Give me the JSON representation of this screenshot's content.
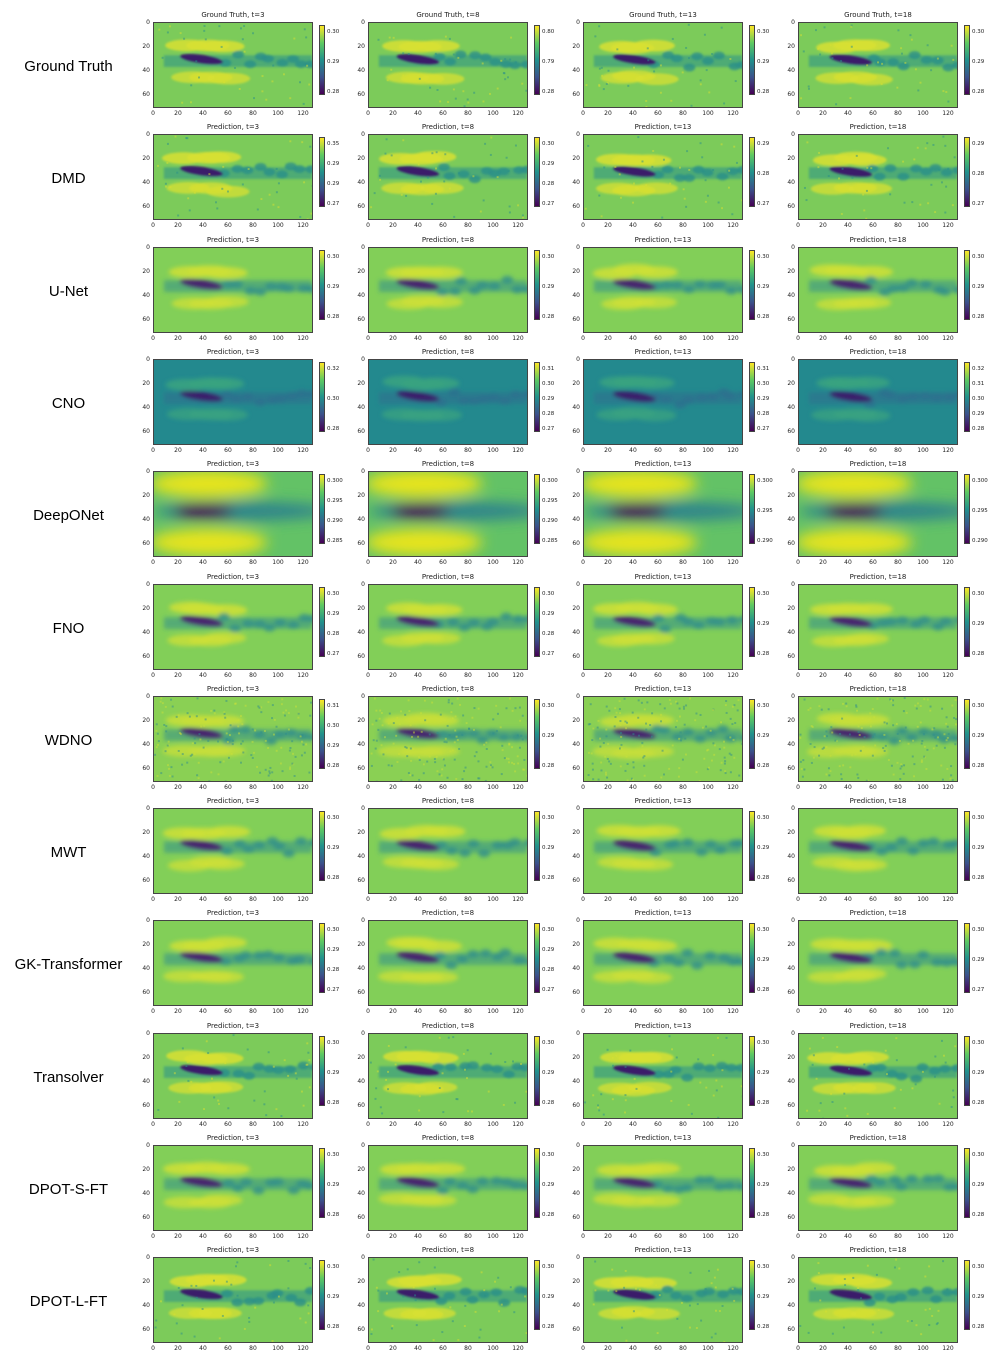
{
  "columns": [
    "t=3",
    "t=8",
    "t=13",
    "t=18"
  ],
  "y_ticks": [
    "0",
    "20",
    "40",
    "60"
  ],
  "x_ticks": [
    "0",
    "20",
    "40",
    "60",
    "80",
    "100",
    "120"
  ],
  "rows": [
    {
      "label": "Ground Truth",
      "style": "sharp",
      "titles": [
        "Ground Truth, t=3",
        "Ground Truth, t=8",
        "Ground Truth, t=13",
        "Ground Truth, t=18"
      ],
      "cbar": [
        [
          "0.30",
          "0.29",
          "0.28"
        ],
        [
          "0.80",
          "0.79",
          "0.28"
        ],
        [
          "0.30",
          "0.29",
          "0.28"
        ],
        [
          "0.30",
          "0.29",
          "0.28"
        ]
      ]
    },
    {
      "label": "DMD",
      "style": "sharp",
      "titles": [
        "Prediction, t=3",
        "Prediction, t=8",
        "Prediction, t=13",
        "Prediction, t=18"
      ],
      "cbar": [
        [
          "0.35",
          "0.29",
          "0.29",
          "0.27"
        ],
        [
          "0.30",
          "0.29",
          "0.28",
          "0.27"
        ],
        [
          "0.29",
          "0.28",
          "0.27"
        ],
        [
          "0.29",
          "0.28",
          "0.27"
        ]
      ]
    },
    {
      "label": "U-Net",
      "style": "smooth",
      "titles": [
        "Prediction, t=3",
        "Prediction, t=8",
        "Prediction, t=13",
        "Prediction, t=18"
      ],
      "cbar": [
        [
          "0.30",
          "0.29",
          "0.28"
        ],
        [
          "0.30",
          "0.29",
          "0.28"
        ],
        [
          "0.30",
          "0.29",
          "0.28"
        ],
        [
          "0.30",
          "0.29",
          "0.28"
        ]
      ]
    },
    {
      "label": "CNO",
      "style": "teal",
      "titles": [
        "Prediction, t=3",
        "Prediction, t=8",
        "Prediction, t=13",
        "Prediction, t=18"
      ],
      "cbar": [
        [
          "0.32",
          "0.30",
          "0.28"
        ],
        [
          "0.31",
          "0.30",
          "0.29",
          "0.28",
          "0.27"
        ],
        [
          "0.31",
          "0.30",
          "0.29",
          "0.28",
          "0.27"
        ],
        [
          "0.32",
          "0.31",
          "0.30",
          "0.29",
          "0.28"
        ]
      ]
    },
    {
      "label": "DeepONet",
      "style": "blur",
      "titles": [
        "Prediction, t=3",
        "Prediction, t=8",
        "Prediction, t=13",
        "Prediction, t=18"
      ],
      "cbar": [
        [
          "0.300",
          "0.295",
          "0.290",
          "0.285"
        ],
        [
          "0.300",
          "0.295",
          "0.290",
          "0.285"
        ],
        [
          "0.300",
          "0.295",
          "0.290"
        ],
        [
          "0.300",
          "0.295",
          "0.290"
        ]
      ]
    },
    {
      "label": "FNO",
      "style": "smooth",
      "titles": [
        "Prediction, t=3",
        "Prediction, t=8",
        "Prediction, t=13",
        "Prediction, t=18"
      ],
      "cbar": [
        [
          "0.30",
          "0.29",
          "0.28",
          "0.27"
        ],
        [
          "0.30",
          "0.29",
          "0.28",
          "0.27"
        ],
        [
          "0.30",
          "0.29",
          "0.28"
        ],
        [
          "0.30",
          "0.29",
          "0.28"
        ]
      ]
    },
    {
      "label": "WDNO",
      "style": "noisy",
      "titles": [
        "Prediction, t=3",
        "Prediction, t=8",
        "Prediction, t=13",
        "Prediction, t=18"
      ],
      "cbar": [
        [
          "0.31",
          "0.30",
          "0.29",
          "0.28"
        ],
        [
          "0.30",
          "0.29",
          "0.28"
        ],
        [
          "0.30",
          "0.29",
          "0.28"
        ],
        [
          "0.30",
          "0.29",
          "0.28"
        ]
      ]
    },
    {
      "label": "MWT",
      "style": "smooth",
      "titles": [
        "Prediction, t=3",
        "Prediction, t=8",
        "Prediction, t=13",
        "Prediction, t=18"
      ],
      "cbar": [
        [
          "0.30",
          "0.29",
          "0.28"
        ],
        [
          "0.30",
          "0.29",
          "0.28"
        ],
        [
          "0.30",
          "0.29",
          "0.28"
        ],
        [
          "0.30",
          "0.29",
          "0.28"
        ]
      ]
    },
    {
      "label": "GK-Transformer",
      "style": "smooth",
      "titles": [
        "Prediction, t=3",
        "Prediction, t=8",
        "Prediction, t=13",
        "Prediction, t=18"
      ],
      "cbar": [
        [
          "0.30",
          "0.29",
          "0.28",
          "0.27"
        ],
        [
          "0.30",
          "0.29",
          "0.28",
          "0.27"
        ],
        [
          "0.30",
          "0.29",
          "0.28"
        ],
        [
          "0.30",
          "0.29",
          "0.27"
        ]
      ]
    },
    {
      "label": "Transolver",
      "style": "sharp",
      "titles": [
        "Prediction, t=3",
        "Prediction, t=8",
        "Prediction, t=13",
        "Prediction, t=18"
      ],
      "cbar": [
        [
          "0.30",
          "0.29",
          "0.28"
        ],
        [
          "0.30",
          "0.29",
          "0.28"
        ],
        [
          "0.30",
          "0.29",
          "0.28"
        ],
        [
          "0.30",
          "0.29",
          "0.28"
        ]
      ]
    },
    {
      "label": "DPOT-S-FT",
      "style": "smooth",
      "titles": [
        "Prediction, t=3",
        "Prediction, t=8",
        "Prediction, t=13",
        "Prediction, t=18"
      ],
      "cbar": [
        [
          "0.30",
          "0.29",
          "0.28"
        ],
        [
          "0.30",
          "0.29",
          "0.28"
        ],
        [
          "0.30",
          "0.29",
          "0.28"
        ],
        [
          "0.30",
          "0.29",
          "0.28"
        ]
      ]
    },
    {
      "label": "DPOT-L-FT",
      "style": "sharp",
      "titles": [
        "Prediction, t=3",
        "Prediction, t=8",
        "Prediction, t=13",
        "Prediction, t=18"
      ],
      "cbar": [
        [
          "0.30",
          "0.29",
          "0.28"
        ],
        [
          "0.30",
          "0.29",
          "0.28"
        ],
        [
          "0.30",
          "0.29",
          "0.28"
        ],
        [
          "0.30",
          "0.29",
          "0.28"
        ]
      ]
    }
  ]
}
